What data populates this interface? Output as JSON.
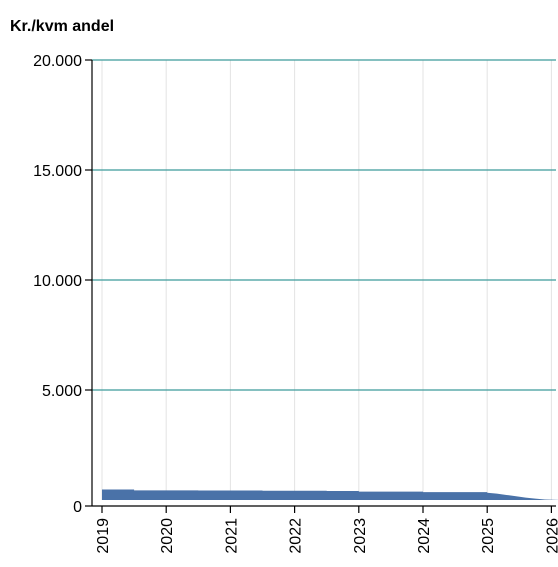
{
  "chart_data": {
    "type": "area",
    "title": "Kr./kvm andel",
    "xlabel": "",
    "ylabel": "",
    "x_ticks": [
      "2019",
      "2020",
      "2021",
      "2022",
      "2023",
      "2024",
      "2025",
      "2026"
    ],
    "y_ticks": [
      "0",
      "5.000",
      "10.000",
      "15.000",
      "20.000"
    ],
    "y_tick_values": [
      0,
      5000,
      10000,
      15000,
      20000
    ],
    "ylim": [
      0,
      20000
    ],
    "xlim": [
      2019,
      2026.2
    ],
    "grid": true,
    "legend": "none",
    "series": [
      {
        "color": "#4a72a8",
        "x": [
          2019.0,
          2019.5,
          2019.5,
          2020.5,
          2020.5,
          2021.5,
          2021.5,
          2022.5,
          2022.5,
          2023.0,
          2023.0,
          2024.0,
          2024.0,
          2025.0,
          2025.0,
          2025.15,
          2025.3,
          2025.45,
          2025.6,
          2025.75,
          2025.9,
          2026.2
        ],
        "y": [
          480,
          480,
          440,
          440,
          430,
          430,
          420,
          420,
          410,
          410,
          380,
          380,
          360,
          360,
          330,
          290,
          230,
          170,
          110,
          60,
          20,
          0
        ]
      }
    ]
  },
  "colors": {
    "major_grid": "#3c9b9b",
    "minor_grid": "#e3e3e3",
    "axis": "#000000",
    "area": "#4a72a8"
  }
}
